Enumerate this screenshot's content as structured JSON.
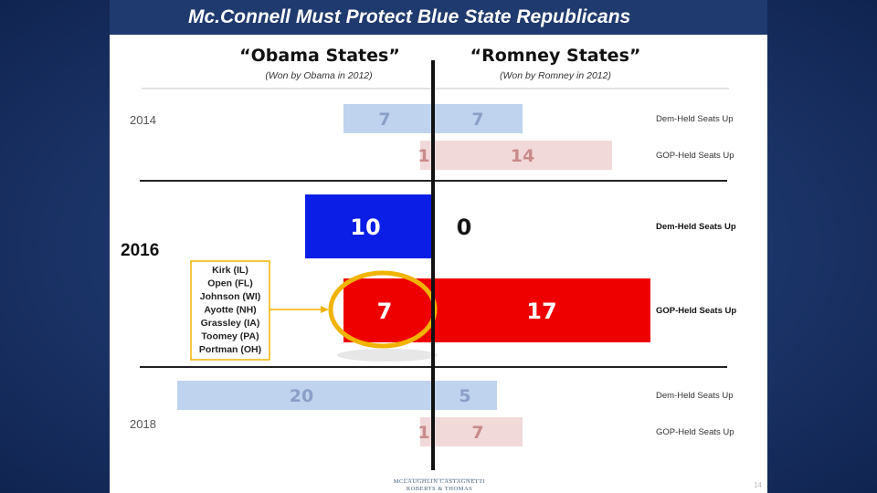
{
  "title": "Mc.Connell Must Protect Blue State Republicans",
  "columns": {
    "left": {
      "title": "“Obama States”",
      "subtitle": "(Won by Obama in 2012)"
    },
    "right": {
      "title": "“Romney States”",
      "subtitle": "(Won by Romney in 2012)"
    }
  },
  "chart_data": {
    "type": "bar",
    "orientation": "horizontal",
    "layout": "diverging",
    "title": "Mc.Connell Must Protect Blue State Republicans",
    "groups": [
      {
        "year": "2014",
        "emphasis": "faint",
        "rows": [
          {
            "label": "Dem-Held Seats Up",
            "party": "dem",
            "obama": 7,
            "romney": 7
          },
          {
            "label": "GOP-Held Seats Up",
            "party": "gop",
            "obama": 1,
            "romney": 14
          }
        ]
      },
      {
        "year": "2016",
        "emphasis": "strong",
        "rows": [
          {
            "label": "Dem-Held Seats Up",
            "party": "dem",
            "obama": 10,
            "romney": 0
          },
          {
            "label": "GOP-Held Seats Up",
            "party": "gop",
            "obama": 7,
            "romney": 17
          }
        ]
      },
      {
        "year": "2018",
        "emphasis": "faint",
        "rows": [
          {
            "label": "Dem-Held Seats Up",
            "party": "dem",
            "obama": 20,
            "romney": 5
          },
          {
            "label": "GOP-Held Seats Up",
            "party": "gop",
            "obama": 1,
            "romney": 7
          }
        ]
      }
    ],
    "colors": {
      "dem_faint": "#bfd3ef",
      "gop_faint": "#f2d9d9",
      "dem_strong": "#0a1ee6",
      "gop_strong": "#ee0000",
      "label_faint_dem": "#8a9fc6",
      "label_faint_gop": "#c98a8a",
      "highlight": "#f0b400"
    }
  },
  "callout": {
    "items": [
      "Kirk (IL)",
      "Open (FL)",
      "Johnson (WI)",
      "Ayotte (NH)",
      "Grassley (IA)",
      "Toomey (PA)",
      "Portman (OH)"
    ]
  },
  "footer": {
    "logo_line1": "MCLAUGHLIN CASTAGNETTI",
    "logo_line2": "ROBERTS & THOMAS",
    "page_number": "14"
  }
}
